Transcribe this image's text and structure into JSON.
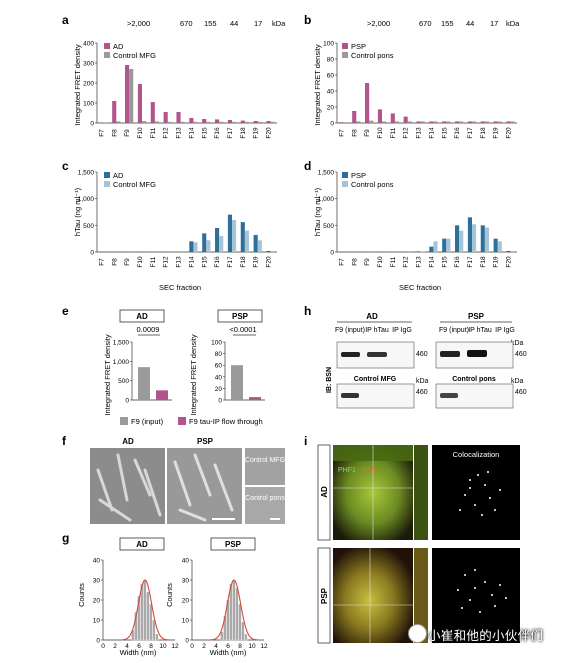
{
  "panels": {
    "a": {
      "letter": "a",
      "kda_label": "kDa",
      "markers": [
        ">2,000",
        "670",
        "155",
        "44",
        "17"
      ],
      "legend": [
        "AD",
        "Control MFG"
      ],
      "ylabel": "Integrated FRET density"
    },
    "b": {
      "letter": "b",
      "kda_label": "kDa",
      "markers": [
        ">2,000",
        "670",
        "155",
        "44",
        "17"
      ],
      "legend": [
        "PSP",
        "Control pons"
      ],
      "ylabel": "Integrated FRET density"
    },
    "c": {
      "letter": "c",
      "legend": [
        "AD",
        "Control MFG"
      ],
      "ylabel": "hTau (ng ml⁻¹)",
      "xlabel": "SEC fraction"
    },
    "d": {
      "letter": "d",
      "legend": [
        "PSP",
        "Control pons"
      ],
      "ylabel": "hTau (ng ml⁻¹)",
      "xlabel": "SEC fraction"
    },
    "e": {
      "letter": "e",
      "ad_title": "AD",
      "psp_title": "PSP",
      "ad_p": "0.0009",
      "psp_p": "<0.0001",
      "ylabel": "Integrated FRET density",
      "legend": [
        "F9 (input)",
        "F9 tau-IP flow through"
      ]
    },
    "f": {
      "letter": "f",
      "ad_title": "AD",
      "psp_title": "PSP",
      "control1": "Control MFG",
      "control2": "Control pons"
    },
    "g": {
      "letter": "g",
      "ad_title": "AD",
      "psp_title": "PSP",
      "ylabel": "Counts",
      "xlabel": "Width (nm)"
    },
    "h": {
      "letter": "h",
      "ad": "AD",
      "psp": "PSP",
      "lanes": [
        "F9 (input)",
        "IP hTau",
        "IP IgG",
        "F9 (input)",
        "IP hTau",
        "IP IgG"
      ],
      "ib": "IB: BSN",
      "kda": "kDa",
      "mw": "460",
      "ctrl1": "Control MFG",
      "ctrl2": "Control pons"
    },
    "i": {
      "letter": "i",
      "ad": "AD",
      "psp": "PSP",
      "phf1": "PHF1",
      "bsn": "BSN",
      "coloc": "Colocalization"
    }
  },
  "fractions": [
    "F7",
    "F8",
    "F9",
    "F10",
    "F11",
    "F12",
    "F13",
    "F14",
    "F15",
    "F16",
    "F17",
    "F18",
    "F19",
    "F20"
  ],
  "watermark": "小崔和他的小伙伴们",
  "colors": {
    "ad": "#b0568a",
    "ctrl_grey": "#9a9a9a",
    "blue": "#2d6f9a",
    "lightblue": "#a7c3d8",
    "red": "#d24b3a"
  },
  "chart_data": [
    {
      "panel": "a",
      "type": "bar",
      "title": "",
      "xlabel": "",
      "ylabel": "Integrated FRET density",
      "ylim": [
        0,
        400
      ],
      "categories": [
        "F7",
        "F8",
        "F9",
        "F10",
        "F11",
        "F12",
        "F13",
        "F14",
        "F15",
        "F16",
        "F17",
        "F18",
        "F19",
        "F20"
      ],
      "series": [
        {
          "name": "AD",
          "values": [
            3,
            110,
            290,
            195,
            105,
            55,
            55,
            25,
            20,
            18,
            15,
            12,
            10,
            10
          ]
        },
        {
          "name": "Control MFG",
          "values": [
            3,
            8,
            270,
            10,
            8,
            6,
            6,
            6,
            6,
            6,
            6,
            6,
            6,
            6
          ]
        }
      ]
    },
    {
      "panel": "b",
      "type": "bar",
      "title": "",
      "xlabel": "",
      "ylabel": "Integrated FRET density",
      "ylim": [
        0,
        100
      ],
      "categories": [
        "F7",
        "F8",
        "F9",
        "F10",
        "F11",
        "F12",
        "F13",
        "F14",
        "F15",
        "F16",
        "F17",
        "F18",
        "F19",
        "F20"
      ],
      "series": [
        {
          "name": "PSP",
          "values": [
            1,
            15,
            50,
            17,
            12,
            8,
            2,
            2,
            2,
            2,
            2,
            2,
            2,
            2
          ]
        },
        {
          "name": "Control pons",
          "values": [
            1,
            2,
            3,
            2,
            2,
            2,
            2,
            2,
            2,
            2,
            2,
            2,
            2,
            2
          ]
        }
      ]
    },
    {
      "panel": "c",
      "type": "bar",
      "xlabel": "SEC fraction",
      "ylabel": "hTau (ng ml⁻¹)",
      "ylim": [
        0,
        1500
      ],
      "categories": [
        "F7",
        "F8",
        "F9",
        "F10",
        "F11",
        "F12",
        "F13",
        "F14",
        "F15",
        "F16",
        "F17",
        "F18",
        "F19",
        "F20"
      ],
      "series": [
        {
          "name": "AD",
          "values": [
            1,
            4,
            9,
            4,
            2,
            2,
            2,
            200,
            350,
            450,
            700,
            560,
            320,
            20
          ]
        },
        {
          "name": "Control MFG",
          "values": [
            0.5,
            1,
            2,
            2,
            2,
            2,
            2,
            180,
            220,
            300,
            600,
            400,
            220,
            18
          ]
        }
      ]
    },
    {
      "panel": "d",
      "type": "bar",
      "xlabel": "SEC fraction",
      "ylabel": "hTau (ng ml⁻¹)",
      "ylim": [
        0,
        1500
      ],
      "categories": [
        "F7",
        "F8",
        "F9",
        "F10",
        "F11",
        "F12",
        "F13",
        "F14",
        "F15",
        "F16",
        "F17",
        "F18",
        "F19",
        "F20"
      ],
      "series": [
        {
          "name": "PSP",
          "values": [
            0.5,
            1,
            3,
            2,
            2,
            5,
            12,
            100,
            250,
            500,
            650,
            500,
            250,
            20
          ]
        },
        {
          "name": "Control pons",
          "values": [
            0.5,
            1,
            1.5,
            2,
            2,
            3,
            10,
            200,
            250,
            400,
            520,
            460,
            200,
            18
          ]
        }
      ]
    },
    {
      "panel": "e",
      "type": "bar",
      "title": "AD",
      "ylabel": "Integrated FRET density",
      "ylim": [
        0,
        1500
      ],
      "categories": [
        "F9 (input)",
        "F9 tau-IP flow through"
      ],
      "values": [
        850,
        250
      ]
    },
    {
      "panel": "e",
      "type": "bar",
      "title": "PSP",
      "ylabel": "Integrated FRET density",
      "ylim": [
        0,
        100
      ],
      "categories": [
        "F9 (input)",
        "F9 tau-IP flow through"
      ],
      "values": [
        60,
        5
      ]
    },
    {
      "panel": "g",
      "type": "bar",
      "title": "AD",
      "xlabel": "Width (nm)",
      "ylabel": "Counts",
      "ylim": [
        0,
        40
      ],
      "x": [
        5,
        5.5,
        6,
        6.5,
        7,
        7.5,
        8,
        8.5,
        9
      ],
      "values": [
        5,
        14,
        22,
        28,
        30,
        24,
        18,
        10,
        3
      ]
    },
    {
      "panel": "g",
      "type": "bar",
      "title": "PSP",
      "xlabel": "Width (nm)",
      "ylabel": "Counts",
      "ylim": [
        0,
        40
      ],
      "x": [
        5,
        5.5,
        6,
        6.5,
        7,
        7.5,
        8,
        8.5,
        9
      ],
      "values": [
        4,
        12,
        20,
        28,
        30,
        26,
        18,
        9,
        3
      ]
    }
  ]
}
